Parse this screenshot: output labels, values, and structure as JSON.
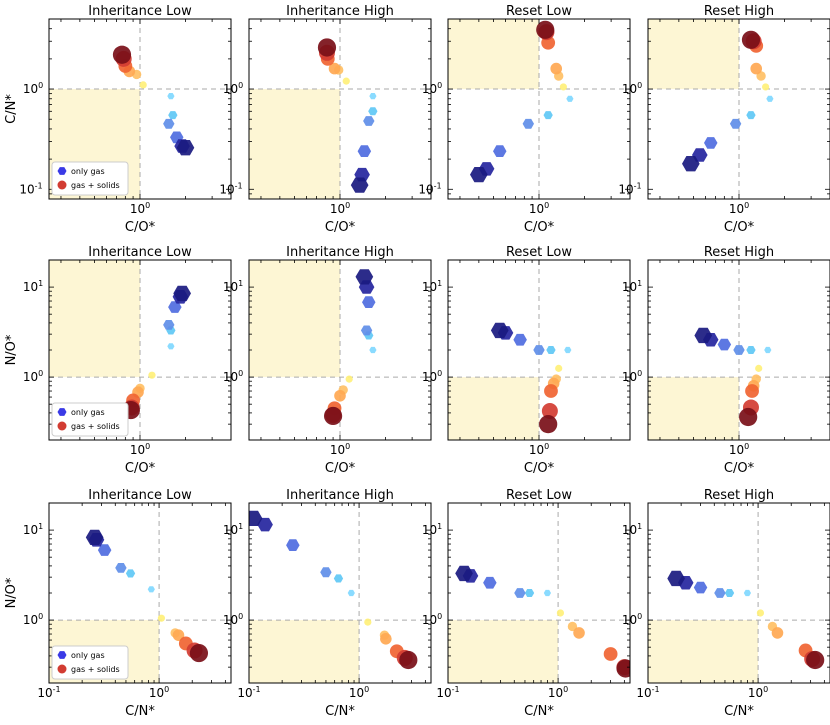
{
  "chart_data": {
    "type": "scatter",
    "description_note": "3x4 grid of log-log scatter panels",
    "legend": {
      "placement": "lower-left",
      "entries": [
        {
          "label": "only gas",
          "color": "#3a3ae6"
        },
        {
          "label": "gas + solids",
          "color": "#d23c32"
        }
      ]
    },
    "colors": {
      "gas": [
        "#1a1a80",
        "#25259e",
        "#3535c8",
        "#4f6ce0",
        "#5f8ee8",
        "#5aa8ec",
        "#60c8f5",
        "#80d8ff"
      ],
      "solid": [
        "#fff07a",
        "#ffd86a",
        "#ffc065",
        "#ffa852",
        "#ff8a3c",
        "#f06432",
        "#d23c32",
        "#a81e24",
        "#7a0f18"
      ],
      "shade": "#fdf6d4",
      "guide": "#aaaaaa"
    },
    "panels": [
      {
        "title": "Inheritance Low",
        "xlabel": "C/O*",
        "ylabel": "C/N*",
        "xlim": [
          0.25,
          4
        ],
        "ylim": [
          0.08,
          5
        ],
        "xticks": [
          1
        ],
        "yticks": [
          0.1,
          1
        ],
        "shade": "lower-left",
        "legend": true,
        "gas": [
          [
            1.6,
            0.85
          ],
          [
            1.65,
            0.55
          ],
          [
            1.55,
            0.45
          ],
          [
            1.75,
            0.33
          ],
          [
            1.9,
            0.27
          ],
          [
            2.0,
            0.26
          ]
        ],
        "solid": [
          [
            1.05,
            1.1
          ],
          [
            0.95,
            1.4
          ],
          [
            0.85,
            1.5
          ],
          [
            0.8,
            1.7
          ],
          [
            0.78,
            2.0
          ],
          [
            0.76,
            2.2
          ]
        ]
      },
      {
        "title": "Inheritance High",
        "xlabel": "C/O*",
        "ylabel": "",
        "xlim": [
          0.25,
          4
        ],
        "ylim": [
          0.08,
          5
        ],
        "xticks": [
          1
        ],
        "yticks": [
          0.1,
          1
        ],
        "shade": "lower-left",
        "legend": false,
        "gas": [
          [
            1.65,
            0.85
          ],
          [
            1.65,
            0.6
          ],
          [
            1.55,
            0.48
          ],
          [
            1.45,
            0.24
          ],
          [
            1.4,
            0.14
          ],
          [
            1.35,
            0.11
          ]
        ],
        "solid": [
          [
            1.1,
            1.2
          ],
          [
            0.98,
            1.55
          ],
          [
            0.92,
            1.6
          ],
          [
            0.83,
            2.0
          ],
          [
            0.82,
            2.3
          ],
          [
            0.82,
            2.6
          ]
        ]
      },
      {
        "title": "Reset Low",
        "xlabel": "C/O*",
        "ylabel": "",
        "xlim": [
          0.25,
          4
        ],
        "ylim": [
          0.08,
          5
        ],
        "xticks": [
          1
        ],
        "yticks": [
          0.1,
          1
        ],
        "shade": "upper-left",
        "legend": false,
        "gas": [
          [
            1.6,
            0.8
          ],
          [
            1.15,
            0.55
          ],
          [
            0.85,
            0.45
          ],
          [
            0.55,
            0.24
          ],
          [
            0.45,
            0.16
          ],
          [
            0.4,
            0.14
          ]
        ],
        "solid": [
          [
            1.45,
            1.05
          ],
          [
            1.35,
            1.35
          ],
          [
            1.3,
            1.6
          ],
          [
            1.15,
            2.9
          ],
          [
            1.12,
            3.7
          ],
          [
            1.1,
            3.9
          ]
        ]
      },
      {
        "title": "Reset High",
        "xlabel": "C/O*",
        "ylabel": "",
        "xlim": [
          0.25,
          4
        ],
        "ylim": [
          0.08,
          5
        ],
        "xticks": [
          1
        ],
        "yticks": [
          0.1,
          1
        ],
        "shade": "upper-left",
        "legend": false,
        "gas": [
          [
            1.6,
            0.8
          ],
          [
            1.2,
            0.55
          ],
          [
            0.95,
            0.45
          ],
          [
            0.65,
            0.29
          ],
          [
            0.55,
            0.22
          ],
          [
            0.48,
            0.18
          ]
        ],
        "solid": [
          [
            1.5,
            1.05
          ],
          [
            1.4,
            1.35
          ],
          [
            1.3,
            1.6
          ],
          [
            1.3,
            2.7
          ],
          [
            1.25,
            3.0
          ],
          [
            1.2,
            3.1
          ]
        ]
      },
      {
        "title": "Inheritance Low",
        "xlabel": "C/O*",
        "ylabel": "N/O*",
        "xlim": [
          0.25,
          4
        ],
        "ylim": [
          0.2,
          20
        ],
        "xticks": [
          1
        ],
        "yticks": [
          1,
          10
        ],
        "shade": "upper-left",
        "legend": true,
        "gas": [
          [
            1.6,
            2.2
          ],
          [
            1.6,
            3.3
          ],
          [
            1.55,
            3.8
          ],
          [
            1.7,
            6.0
          ],
          [
            1.85,
            7.8
          ],
          [
            1.9,
            8.5
          ]
        ],
        "solid": [
          [
            1.2,
            1.05
          ],
          [
            1.0,
            0.75
          ],
          [
            0.97,
            0.68
          ],
          [
            0.9,
            0.55
          ],
          [
            0.88,
            0.46
          ],
          [
            0.87,
            0.43
          ]
        ]
      },
      {
        "title": "Inheritance High",
        "xlabel": "C/O*",
        "ylabel": "",
        "xlim": [
          0.25,
          4
        ],
        "ylim": [
          0.2,
          20
        ],
        "xticks": [
          1
        ],
        "yticks": [
          1,
          10
        ],
        "shade": "upper-left",
        "legend": false,
        "gas": [
          [
            1.65,
            2.0
          ],
          [
            1.55,
            2.9
          ],
          [
            1.5,
            3.3
          ],
          [
            1.55,
            6.8
          ],
          [
            1.5,
            10.0
          ],
          [
            1.45,
            13.0
          ]
        ],
        "solid": [
          [
            1.15,
            0.95
          ],
          [
            1.05,
            0.72
          ],
          [
            1.0,
            0.62
          ],
          [
            0.92,
            0.45
          ],
          [
            0.9,
            0.38
          ],
          [
            0.9,
            0.37
          ]
        ]
      },
      {
        "title": "Reset Low",
        "xlabel": "C/O*",
        "ylabel": "",
        "xlim": [
          0.25,
          4
        ],
        "ylim": [
          0.2,
          20
        ],
        "xticks": [
          1
        ],
        "yticks": [
          1,
          10
        ],
        "shade": "lower-left",
        "legend": false,
        "gas": [
          [
            1.55,
            2.0
          ],
          [
            1.2,
            2.0
          ],
          [
            1.0,
            2.0
          ],
          [
            0.75,
            2.6
          ],
          [
            0.6,
            3.1
          ],
          [
            0.55,
            3.3
          ]
        ],
        "solid": [
          [
            1.35,
            1.25
          ],
          [
            1.3,
            0.95
          ],
          [
            1.25,
            0.85
          ],
          [
            1.2,
            0.7
          ],
          [
            1.18,
            0.42
          ],
          [
            1.15,
            0.3
          ]
        ]
      },
      {
        "title": "Reset High",
        "xlabel": "C/O*",
        "ylabel": "",
        "xlim": [
          0.25,
          4
        ],
        "ylim": [
          0.2,
          20
        ],
        "xticks": [
          1
        ],
        "yticks": [
          1,
          10
        ],
        "shade": "lower-left",
        "legend": false,
        "gas": [
          [
            1.55,
            2.0
          ],
          [
            1.2,
            2.0
          ],
          [
            1.0,
            2.0
          ],
          [
            0.8,
            2.3
          ],
          [
            0.65,
            2.6
          ],
          [
            0.58,
            2.9
          ]
        ],
        "solid": [
          [
            1.35,
            1.25
          ],
          [
            1.3,
            0.95
          ],
          [
            1.25,
            0.8
          ],
          [
            1.22,
            0.7
          ],
          [
            1.2,
            0.46
          ],
          [
            1.15,
            0.36
          ]
        ]
      },
      {
        "title": "Inheritance Low",
        "xlabel": "C/N*",
        "ylabel": "N/O*",
        "xlim": [
          0.1,
          4.5
        ],
        "ylim": [
          0.2,
          20
        ],
        "xticks": [
          0.1,
          1
        ],
        "yticks": [
          1,
          10
        ],
        "shade": "lower-left",
        "legend": true,
        "gas": [
          [
            0.85,
            2.2
          ],
          [
            0.55,
            3.3
          ],
          [
            0.45,
            3.8
          ],
          [
            0.32,
            6.0
          ],
          [
            0.27,
            7.8
          ],
          [
            0.26,
            8.3
          ]
        ],
        "solid": [
          [
            1.05,
            1.05
          ],
          [
            1.4,
            0.72
          ],
          [
            1.5,
            0.68
          ],
          [
            1.75,
            0.55
          ],
          [
            2.1,
            0.46
          ],
          [
            2.3,
            0.43
          ]
        ]
      },
      {
        "title": "Inheritance High",
        "xlabel": "C/N*",
        "ylabel": "",
        "xlim": [
          0.1,
          4.5
        ],
        "ylim": [
          0.2,
          20
        ],
        "xticks": [
          0.1,
          1
        ],
        "yticks": [
          1,
          10
        ],
        "shade": "lower-left",
        "legend": false,
        "gas": [
          [
            0.85,
            2.0
          ],
          [
            0.65,
            2.9
          ],
          [
            0.5,
            3.4
          ],
          [
            0.25,
            6.8
          ],
          [
            0.14,
            11.5
          ],
          [
            0.11,
            13.5
          ]
        ],
        "solid": [
          [
            1.2,
            0.95
          ],
          [
            1.7,
            0.68
          ],
          [
            1.75,
            0.62
          ],
          [
            2.2,
            0.45
          ],
          [
            2.6,
            0.38
          ],
          [
            2.8,
            0.36
          ]
        ]
      },
      {
        "title": "Reset Low",
        "xlabel": "C/N*",
        "ylabel": "",
        "xlim": [
          0.1,
          4.5
        ],
        "ylim": [
          0.2,
          20
        ],
        "xticks": [
          0.1,
          1
        ],
        "yticks": [
          1,
          10
        ],
        "shade": "lower-left",
        "legend": false,
        "gas": [
          [
            0.8,
            2.0
          ],
          [
            0.55,
            2.0
          ],
          [
            0.45,
            2.0
          ],
          [
            0.24,
            2.6
          ],
          [
            0.16,
            3.1
          ],
          [
            0.14,
            3.3
          ]
        ],
        "solid": [
          [
            1.05,
            1.2
          ],
          [
            1.35,
            0.85
          ],
          [
            1.55,
            0.72
          ],
          [
            3.0,
            0.42
          ],
          [
            4.0,
            0.3
          ],
          [
            4.1,
            0.29
          ]
        ]
      },
      {
        "title": "Reset High",
        "xlabel": "C/N*",
        "ylabel": "",
        "xlim": [
          0.1,
          4.5
        ],
        "ylim": [
          0.2,
          20
        ],
        "xticks": [
          0.1,
          1
        ],
        "yticks": [
          1,
          10
        ],
        "shade": "lower-left",
        "legend": false,
        "gas": [
          [
            0.8,
            2.0
          ],
          [
            0.55,
            2.0
          ],
          [
            0.45,
            2.0
          ],
          [
            0.3,
            2.3
          ],
          [
            0.22,
            2.6
          ],
          [
            0.18,
            2.9
          ]
        ],
        "solid": [
          [
            1.05,
            1.2
          ],
          [
            1.35,
            0.85
          ],
          [
            1.5,
            0.72
          ],
          [
            2.7,
            0.46
          ],
          [
            3.1,
            0.37
          ],
          [
            3.3,
            0.36
          ]
        ]
      }
    ]
  }
}
